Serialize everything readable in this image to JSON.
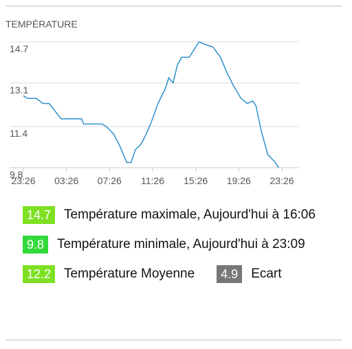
{
  "chart_data": {
    "type": "line",
    "title": "TEMPÉRATURE",
    "x": [
      0,
      0.4,
      1.2,
      1.8,
      2.4,
      3.5,
      5.4,
      5.6,
      7.3,
      7.7,
      8.4,
      9.0,
      9.6,
      10.0,
      10.4,
      10.9,
      11.4,
      11.9,
      12.5,
      13.2,
      13.5,
      13.9,
      14.3,
      14.7,
      15.4,
      16.0,
      16.3,
      16.9,
      17.6,
      18.3,
      18.9,
      19.5,
      20.2,
      20.8,
      21.3,
      21.6,
      22.1,
      22.7,
      23.4,
      23.7
    ],
    "series": [
      {
        "color": "#2b8fcc",
        "values": [
          12.6,
          12.5,
          12.5,
          12.3,
          12.3,
          11.7,
          11.7,
          11.5,
          11.5,
          11.4,
          11.1,
          10.6,
          10.0,
          10.0,
          10.5,
          10.7,
          11.1,
          11.6,
          12.3,
          12.9,
          13.3,
          13.1,
          13.8,
          14.1,
          14.1,
          14.5,
          14.7,
          14.6,
          14.5,
          14.1,
          13.5,
          13.0,
          12.5,
          12.3,
          12.4,
          12.2,
          11.2,
          10.3,
          10.0,
          9.8
        ]
      }
    ],
    "xlim": [
      0,
      24
    ],
    "xticks": [
      {
        "value": 0,
        "label": "23:26"
      },
      {
        "value": 4,
        "label": "03:26"
      },
      {
        "value": 8,
        "label": "07:26"
      },
      {
        "value": 12,
        "label": "11:26"
      },
      {
        "value": 16,
        "label": "15:26"
      },
      {
        "value": 20,
        "label": "19:26"
      },
      {
        "value": 24,
        "label": "23:26"
      }
    ],
    "ylim": [
      9.8,
      14.7
    ],
    "yticks": [
      9.8,
      11.4,
      13.1,
      14.7
    ],
    "grid": true
  },
  "stats": [
    [
      {
        "value": "14.7",
        "color": "#7ee023",
        "label": "Température maximale, Aujourd'hui à 16:06"
      }
    ],
    [
      {
        "value": "9.8",
        "color": "#33d93a",
        "label": "Température minimale, Aujourd'hui à 23:09"
      }
    ],
    [
      {
        "value": "12.2",
        "color": "#7ee023",
        "label": "Température Moyenne"
      },
      {
        "value": "4.9",
        "color": "#777777",
        "label": "Ecart"
      }
    ]
  ]
}
